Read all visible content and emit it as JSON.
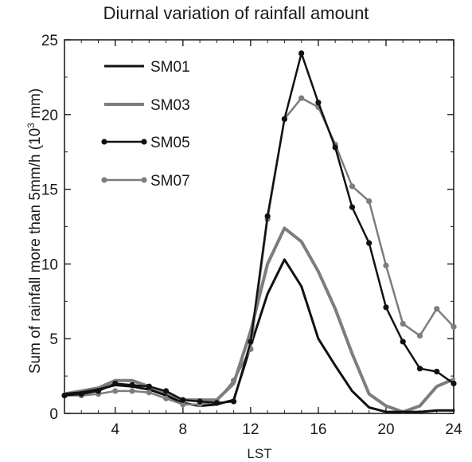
{
  "chart_data": {
    "type": "line",
    "title": "Diurnal variation of rainfall amount",
    "xlabel": "LST",
    "ylabel": "Sum of rainfall more than 5mm/h (10",
    "ylabel_sup": "3",
    "ylabel_unit": " mm)",
    "xlim": [
      1,
      24
    ],
    "ylim": [
      0,
      25
    ],
    "xticks": [
      4,
      8,
      12,
      16,
      20,
      24
    ],
    "yticks": [
      0,
      5,
      10,
      15,
      20,
      25
    ],
    "grid": false,
    "legend_position": "top-left",
    "x": [
      1,
      2,
      3,
      4,
      5,
      6,
      7,
      8,
      9,
      10,
      11,
      12,
      13,
      14,
      15,
      16,
      17,
      18,
      19,
      20,
      21,
      22,
      23,
      24
    ],
    "series": [
      {
        "name": "SM01",
        "color": "#111111",
        "marker": false,
        "width": 3,
        "values": [
          1.3,
          1.4,
          1.6,
          1.9,
          1.8,
          1.6,
          1.2,
          0.7,
          0.5,
          0.6,
          0.9,
          4.5,
          8.0,
          10.3,
          8.5,
          5.0,
          3.2,
          1.5,
          0.4,
          0.1,
          0.1,
          0.1,
          0.2,
          0.2
        ]
      },
      {
        "name": "SM03",
        "color": "#7d7d7d",
        "marker": false,
        "width": 4,
        "values": [
          1.3,
          1.5,
          1.7,
          2.2,
          2.2,
          1.8,
          1.3,
          0.9,
          0.9,
          0.9,
          2.0,
          5.5,
          10.0,
          12.4,
          11.5,
          9.5,
          7.0,
          4.0,
          1.3,
          0.5,
          0.1,
          0.5,
          1.8,
          2.3
        ]
      },
      {
        "name": "SM05",
        "color": "#111111",
        "marker": true,
        "width": 2.5,
        "values": [
          1.2,
          1.3,
          1.5,
          2.0,
          1.9,
          1.8,
          1.5,
          0.9,
          0.8,
          0.7,
          0.8,
          4.8,
          13.2,
          19.7,
          24.1,
          20.8,
          17.8,
          13.8,
          11.4,
          7.1,
          4.8,
          3.0,
          2.8,
          2.0
        ]
      },
      {
        "name": "SM07",
        "color": "#7d7d7d",
        "marker": true,
        "width": 2.5,
        "values": [
          1.2,
          1.2,
          1.3,
          1.5,
          1.5,
          1.4,
          1.0,
          0.6,
          0.6,
          0.8,
          2.2,
          4.3,
          13.0,
          19.7,
          21.1,
          20.5,
          18.0,
          15.2,
          14.2,
          9.9,
          6.0,
          5.2,
          7.0,
          5.8
        ]
      }
    ]
  }
}
